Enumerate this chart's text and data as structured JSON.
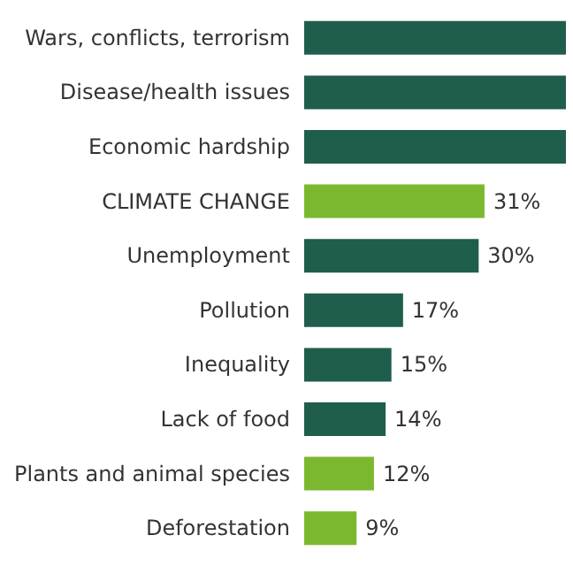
{
  "chart_data": {
    "type": "bar",
    "orientation": "horizontal",
    "categories": [
      "Wars, conflicts, terrorism",
      "Disease/health issues",
      "Economic hardship",
      "CLIMATE CHANGE",
      "Unemployment",
      "Pollution",
      "Inequality",
      "Lack of food",
      "Plants and animal species",
      "Deforestation"
    ],
    "values": [
      45,
      45,
      45,
      31,
      30,
      17,
      15,
      14,
      12,
      9
    ],
    "colors": [
      "#1f5d4c",
      "#1f5d4c",
      "#1f5d4c",
      "#7cb82f",
      "#1f5d4c",
      "#1f5d4c",
      "#1f5d4c",
      "#1f5d4c",
      "#7cb82f",
      "#7cb82f"
    ],
    "value_labels": [
      null,
      null,
      null,
      "31%",
      "30%",
      "17%",
      "15%",
      "14%",
      "12%",
      "9%"
    ],
    "xlim": [
      0,
      45
    ]
  }
}
